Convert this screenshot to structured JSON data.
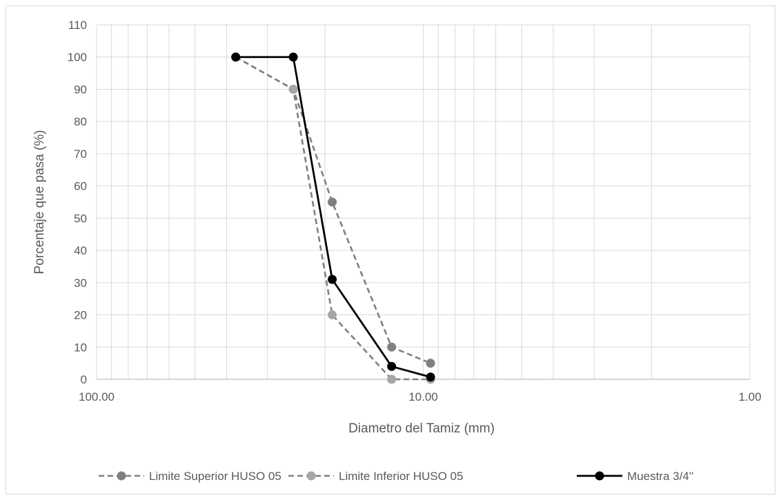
{
  "chart_data": {
    "type": "line",
    "title": "",
    "xlabel": "Diametro del Tamiz (mm)",
    "ylabel": "Porcentaje que pasa (%)",
    "x_scale": "log",
    "x_reversed": true,
    "xlim": [
      100,
      1
    ],
    "ylim": [
      0,
      110
    ],
    "y_ticks": [
      0,
      10,
      20,
      30,
      40,
      50,
      60,
      70,
      80,
      90,
      100,
      110
    ],
    "x_tick_labels": [
      "100.00",
      "10.00",
      "1.00"
    ],
    "x_tick_values": [
      100,
      10,
      1
    ],
    "grid": true,
    "legend_position": "bottom",
    "series": [
      {
        "name": "Limite Superior HUSO 05",
        "color": "#7f7f7f",
        "dashed": true,
        "marker_color": "#808080",
        "x": [
          37.5,
          25.0,
          19.0,
          12.5,
          9.5
        ],
        "y": [
          100,
          90,
          55,
          10,
          5
        ]
      },
      {
        "name": "Limite Inferior HUSO 05",
        "color": "#7f7f7f",
        "dashed": true,
        "marker_color": "#a6a6a6",
        "x": [
          37.5,
          25.0,
          19.0,
          12.5,
          9.5
        ],
        "y": [
          100,
          90,
          20,
          0,
          0
        ]
      },
      {
        "name": "Muestra 3/4''",
        "color": "#000000",
        "dashed": false,
        "marker_color": "#000000",
        "x": [
          37.5,
          25.0,
          19.0,
          12.5,
          9.5
        ],
        "y": [
          100,
          100,
          31,
          4,
          0.7
        ]
      }
    ]
  }
}
